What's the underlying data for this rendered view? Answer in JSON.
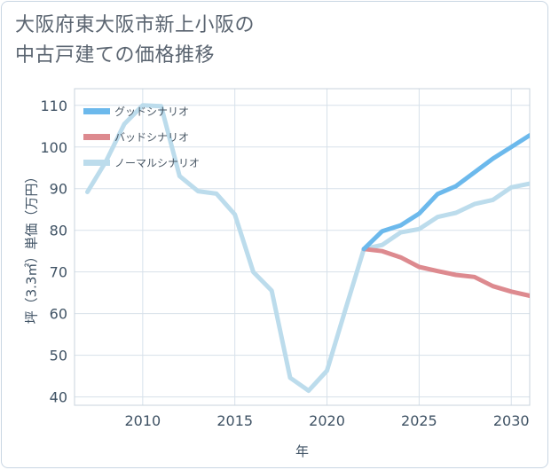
{
  "title_lines": [
    "大阪府東大阪市新上小阪の",
    "中古戸建ての価格推移"
  ],
  "colors": {
    "good": "#6cb9ec",
    "bad": "#dd8a8f",
    "normal": "#bcdcec",
    "grid": "#d7e1ea",
    "axis": "#3f5264"
  },
  "chart_data": {
    "type": "line",
    "title": "大阪府東大阪市新上小阪の中古戸建ての価格推移",
    "xlabel": "年",
    "ylabel": "坪（3.3㎡）単価（万円）",
    "xlim": [
      2006.3,
      2031
    ],
    "ylim": [
      38,
      114
    ],
    "xticks": [
      2010,
      2015,
      2020,
      2025,
      2030
    ],
    "yticks": [
      40,
      50,
      60,
      70,
      80,
      90,
      100,
      110
    ],
    "grid": true,
    "legend_position": "top-left",
    "series": [
      {
        "key": "good",
        "name": "グッドシナリオ",
        "x": [
          2022,
          2023,
          2024,
          2025,
          2026,
          2027,
          2028,
          2029,
          2030,
          2031
        ],
        "y": [
          75.5,
          79.8,
          81.2,
          84.0,
          88.7,
          90.6,
          93.9,
          97.2,
          100.0,
          102.8
        ]
      },
      {
        "key": "bad",
        "name": "バッドシナリオ",
        "x": [
          2022,
          2023,
          2024,
          2025,
          2026,
          2027,
          2028,
          2029,
          2030,
          2031
        ],
        "y": [
          75.5,
          75.0,
          73.5,
          71.2,
          70.2,
          69.3,
          68.8,
          66.6,
          65.3,
          64.3
        ]
      },
      {
        "key": "normal",
        "name": "ノーマルシナリオ",
        "x": [
          2007,
          2008,
          2009,
          2010,
          2011,
          2012,
          2013,
          2014,
          2015,
          2016,
          2017,
          2018,
          2019,
          2020,
          2021,
          2022,
          2023,
          2024,
          2025,
          2026,
          2027,
          2028,
          2029,
          2030,
          2031
        ],
        "y": [
          89.2,
          96.5,
          105.5,
          110.0,
          109.8,
          93.0,
          89.4,
          88.8,
          83.8,
          70.0,
          65.5,
          44.6,
          41.5,
          46.3,
          61.0,
          75.5,
          76.5,
          79.5,
          80.3,
          83.2,
          84.2,
          86.3,
          87.3,
          90.3,
          91.2
        ]
      }
    ]
  }
}
